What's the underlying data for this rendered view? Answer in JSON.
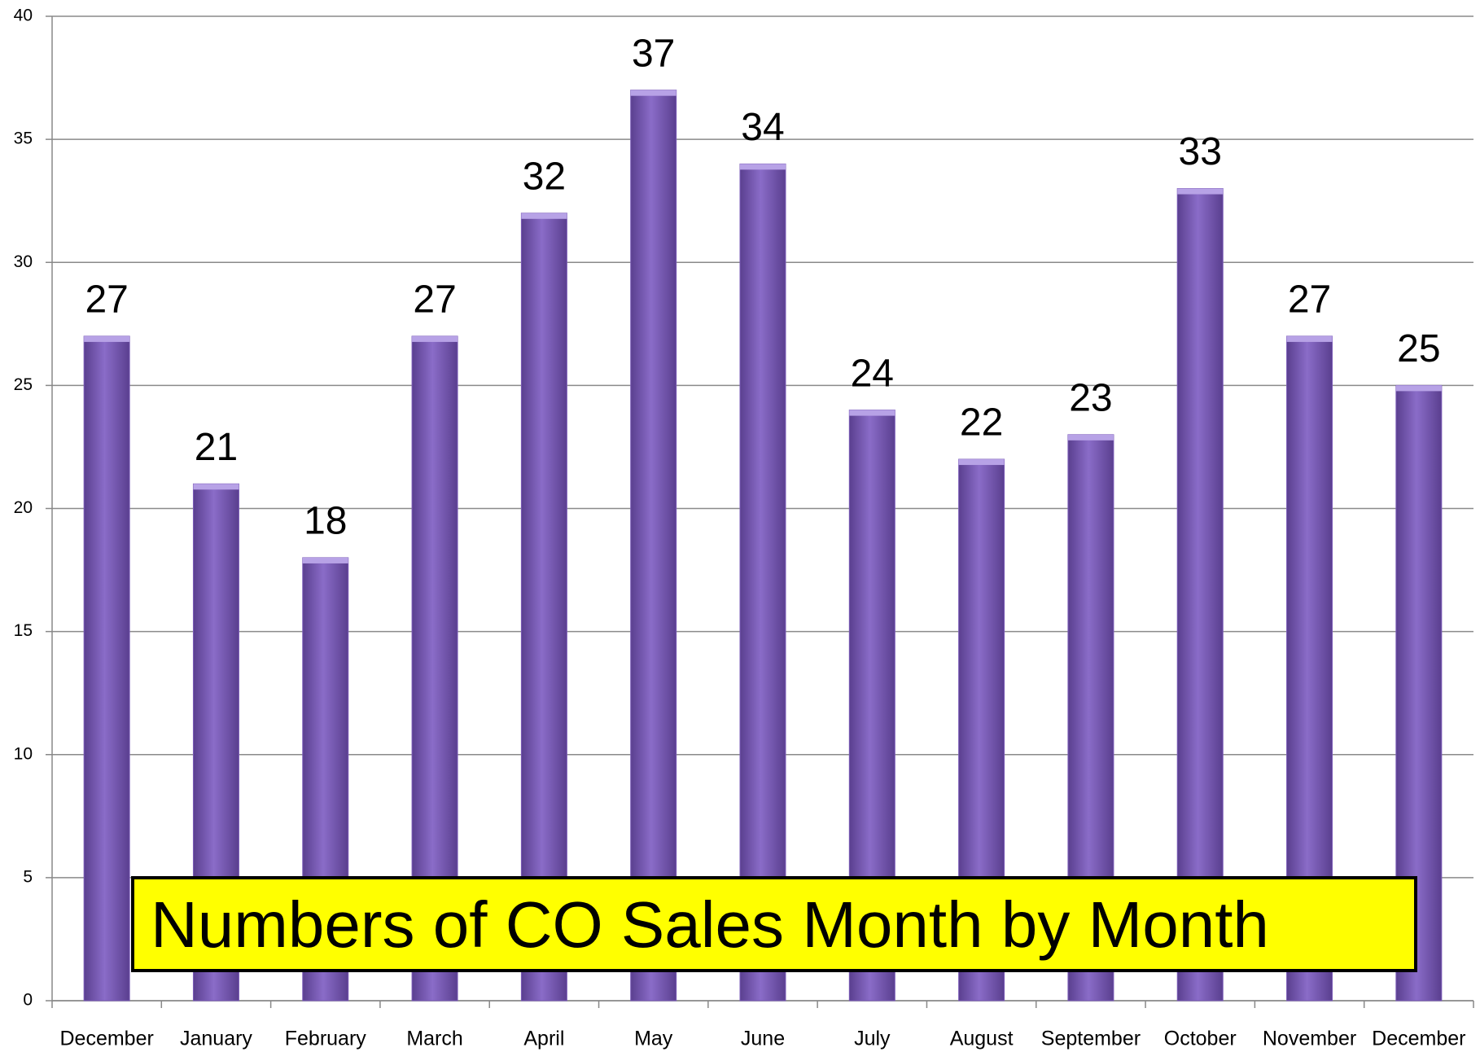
{
  "chart_data": {
    "type": "bar",
    "title": "Numbers of CO Sales Month by Month",
    "categories": [
      "December",
      "January",
      "February",
      "March",
      "April",
      "May",
      "June",
      "July",
      "August",
      "September",
      "October",
      "November",
      "December"
    ],
    "values": [
      27,
      21,
      18,
      27,
      32,
      37,
      34,
      24,
      22,
      23,
      33,
      27,
      25
    ],
    "color": "#7b5cb8",
    "ylim": [
      0,
      40
    ],
    "yticks": [
      0,
      5,
      10,
      15,
      20,
      25,
      30,
      35,
      40
    ],
    "grid": true
  }
}
